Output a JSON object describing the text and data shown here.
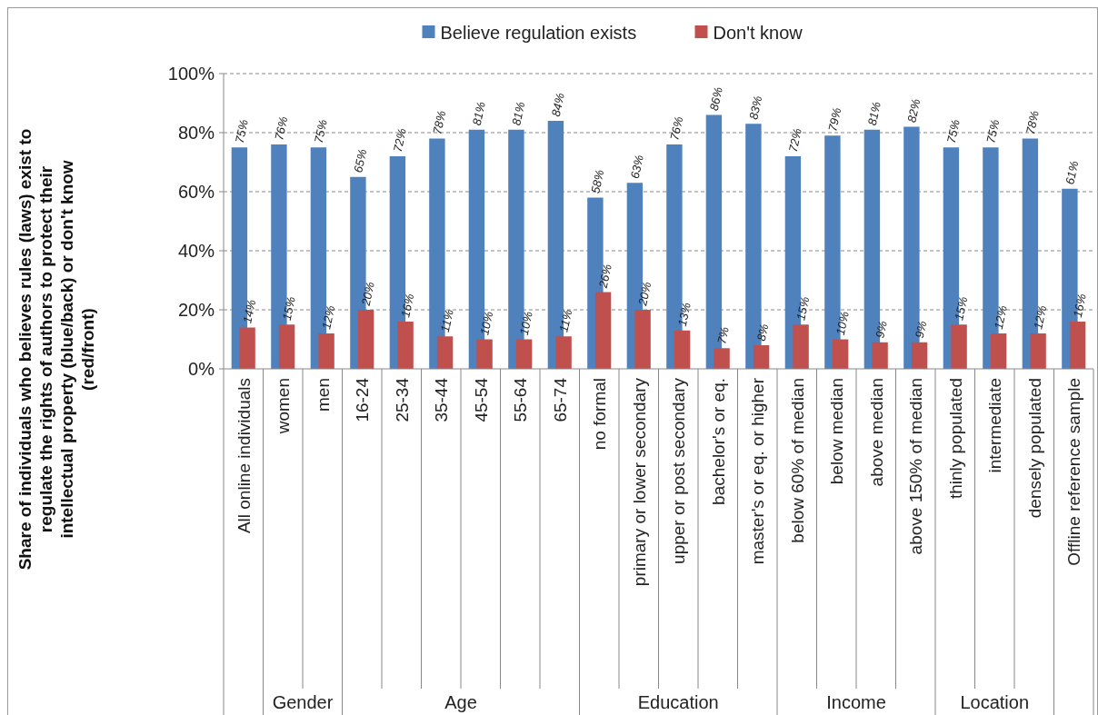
{
  "chart_data": {
    "type": "bar",
    "ylabel": "Share of individuals who believes rules (laws) exist to regulate the rights of authors to protect their intellectual property (blue/back) or don't know (red/front)",
    "categories": [
      "All online individuals",
      "women",
      "men",
      "16-24",
      "25-34",
      "35-44",
      "45-54",
      "55-64",
      "65-74",
      "no formal",
      "primary or lower secondary",
      "upper or post secondary",
      "bachelor's or eq.",
      "master's or eq. or higher",
      "below 60% of median",
      "below median",
      "above median",
      "above 150% of median",
      "thinly populated",
      "intermediate",
      "densely populated",
      "Offline reference sample"
    ],
    "series": [
      {
        "name": "Believe regulation exists",
        "color": "#4f81bd",
        "values": [
          75,
          76,
          75,
          65,
          72,
          78,
          81,
          81,
          84,
          58,
          63,
          76,
          86,
          83,
          72,
          79,
          81,
          82,
          75,
          75,
          78,
          61
        ],
        "value_labels": [
          "75%",
          "76%",
          "75%",
          "65%",
          "72%",
          "78%",
          "81%",
          "81%",
          "84%",
          "58%",
          "63%",
          "76%",
          "86%",
          "83%",
          "72%",
          "79%",
          "81%",
          "82%",
          "75%",
          "75%",
          "78%",
          "61%"
        ]
      },
      {
        "name": "Don't know",
        "color": "#c0504d",
        "values": [
          14,
          15,
          12,
          20,
          16,
          11,
          10,
          10,
          11,
          26,
          20,
          13,
          7,
          8,
          15,
          10,
          9,
          9,
          15,
          12,
          12,
          16
        ],
        "value_labels": [
          "14%",
          "15%",
          "12%",
          "20%",
          "16%",
          "11%",
          "10%",
          "10%",
          "11%",
          "26%",
          "20%",
          "13%",
          "7%",
          "8%",
          "15%",
          "10%",
          "9%",
          "9%",
          "15%",
          "12%",
          "12%",
          "16%"
        ]
      }
    ],
    "ylim": [
      0,
      100
    ],
    "yticks": [
      {
        "value": 0,
        "label": "0%"
      },
      {
        "value": 20,
        "label": "20%"
      },
      {
        "value": 40,
        "label": "40%"
      },
      {
        "value": 60,
        "label": "60%"
      },
      {
        "value": 80,
        "label": "80%"
      },
      {
        "value": 100,
        "label": "100%"
      }
    ],
    "grid": "y",
    "legend": "top",
    "annotations": [
      "Gender",
      "Age",
      "Education",
      "Income",
      "Location"
    ]
  }
}
